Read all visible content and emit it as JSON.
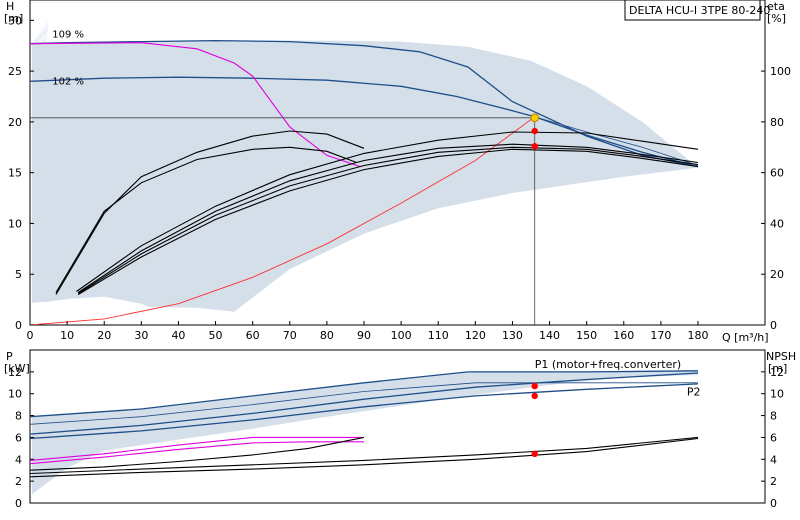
{
  "title": "DELTA HCU-I 3TPE 80-240",
  "colors": {
    "envelope": "#d4dfe9",
    "pump_curve": "#1f4e8a",
    "eff_curve": "#000000",
    "power_limit": "#e000e0",
    "system_curve": "#ff3030",
    "marker": "#ff0000",
    "duty_marker": "#f5d000",
    "grid": "#000000"
  },
  "chart_data": [
    {
      "type": "line",
      "id": "head",
      "xlabel": "Q [m³/h]",
      "ylabel": "H\n[m]",
      "y2label": "eta\n[%]",
      "xlim": [
        0,
        180
      ],
      "ylim": [
        0,
        32
      ],
      "y2lim": [
        0,
        128
      ],
      "xticks": [
        0,
        10,
        20,
        30,
        40,
        50,
        60,
        70,
        80,
        90,
        100,
        110,
        120,
        130,
        140,
        150,
        160,
        170,
        180
      ],
      "yticks": [
        0,
        5,
        10,
        15,
        20,
        25,
        30
      ],
      "y2ticks": [
        0,
        20,
        40,
        60,
        80,
        100
      ],
      "speed_labels": [
        {
          "text": "109 %",
          "x": 6,
          "y": 28.3
        },
        {
          "text": "102 %",
          "x": 6,
          "y": 23.7
        }
      ],
      "envelope": [
        [
          0.5,
          2.2
        ],
        [
          5,
          2.3
        ],
        [
          11,
          2.6
        ],
        [
          20,
          2.8
        ],
        [
          30,
          2.1
        ],
        [
          32,
          1.8
        ],
        [
          45,
          1.7
        ],
        [
          55,
          1.3
        ],
        [
          70,
          5.5
        ],
        [
          90,
          9
        ],
        [
          110,
          11.5
        ],
        [
          130,
          13
        ],
        [
          160,
          14.6
        ],
        [
          180,
          15.5
        ],
        [
          165,
          20
        ],
        [
          150,
          23.5
        ],
        [
          135,
          26
        ],
        [
          118,
          27.4
        ],
        [
          100,
          27.9
        ],
        [
          80,
          28
        ],
        [
          60,
          28
        ],
        [
          30,
          27.9
        ],
        [
          0.5,
          27.8
        ]
      ],
      "hatch_region": [
        [
          0.5,
          2.2
        ],
        [
          0.5,
          27.8
        ],
        [
          5,
          30
        ],
        [
          3,
          22
        ],
        [
          1.8,
          10
        ]
      ],
      "series": [
        {
          "name": "109 %",
          "role": "pump",
          "points": [
            [
              0,
              27.7
            ],
            [
              10,
              27.8
            ],
            [
              30,
              27.9
            ],
            [
              50,
              28
            ],
            [
              70,
              27.9
            ],
            [
              90,
              27.5
            ],
            [
              105,
              26.9
            ],
            [
              118,
              25.4
            ],
            [
              130,
              22
            ],
            [
              150,
              18.6
            ],
            [
              165,
              16.7
            ],
            [
              180,
              15.6
            ]
          ]
        },
        {
          "name": "102 %",
          "role": "pump",
          "points": [
            [
              0,
              24
            ],
            [
              20,
              24.3
            ],
            [
              40,
              24.4
            ],
            [
              60,
              24.3
            ],
            [
              80,
              24.1
            ],
            [
              100,
              23.5
            ],
            [
              115,
              22.5
            ],
            [
              130,
              21.1
            ],
            [
              136,
              20.5
            ],
            [
              150,
              18.7
            ],
            [
              165,
              17
            ],
            [
              180,
              15.6
            ]
          ]
        },
        {
          "name": "",
          "role": "pump-thin",
          "points": [
            [
              136,
              20.5
            ],
            [
              150,
              19
            ],
            [
              165,
              17.5
            ],
            [
              180,
              15.7
            ]
          ]
        },
        {
          "name": "",
          "role": "power-limit",
          "points": [
            [
              0,
              27.7
            ],
            [
              30,
              27.8
            ],
            [
              45,
              27.2
            ],
            [
              55,
              25.8
            ],
            [
              60,
              24.5
            ],
            [
              70,
              19.5
            ],
            [
              80,
              16.7
            ],
            [
              89,
              15.6
            ]
          ]
        },
        {
          "name": "",
          "role": "system",
          "points": [
            [
              0,
              0
            ],
            [
              20,
              0.6
            ],
            [
              40,
              2.1
            ],
            [
              60,
              4.7
            ],
            [
              80,
              8
            ],
            [
              100,
              12
            ],
            [
              120,
              16.2
            ],
            [
              136,
              20.5
            ]
          ]
        },
        {
          "name": "",
          "role": "eff",
          "points": [
            [
              7,
              3
            ],
            [
              20,
              11
            ],
            [
              30,
              14.6
            ],
            [
              45,
              17
            ],
            [
              60,
              18.6
            ],
            [
              70,
              19.1
            ],
            [
              80,
              18.8
            ],
            [
              90,
              17.4
            ]
          ]
        },
        {
          "name": "",
          "role": "eff",
          "points": [
            [
              7,
              3.2
            ],
            [
              20,
              11.2
            ],
            [
              30,
              14
            ],
            [
              45,
              16.3
            ],
            [
              60,
              17.3
            ],
            [
              70,
              17.5
            ],
            [
              80,
              17.1
            ],
            [
              88,
              16
            ]
          ]
        },
        {
          "name": "",
          "role": "eff",
          "points": [
            [
              12.5,
              3.3
            ],
            [
              30,
              7.8
            ],
            [
              50,
              11.7
            ],
            [
              70,
              14.8
            ],
            [
              90,
              16.9
            ],
            [
              110,
              18.2
            ],
            [
              130,
              19
            ],
            [
              150,
              18.9
            ],
            [
              165,
              18.1
            ],
            [
              180,
              17.3
            ]
          ]
        },
        {
          "name": "",
          "role": "eff",
          "points": [
            [
              13,
              3.2
            ],
            [
              30,
              7.3
            ],
            [
              50,
              11.2
            ],
            [
              70,
              14.2
            ],
            [
              90,
              16.2
            ],
            [
              110,
              17.4
            ],
            [
              130,
              17.8
            ],
            [
              150,
              17.5
            ],
            [
              165,
              16.8
            ],
            [
              180,
              16
            ]
          ]
        },
        {
          "name": "",
          "role": "eff",
          "points": [
            [
              13,
              3.1
            ],
            [
              30,
              7
            ],
            [
              50,
              10.8
            ],
            [
              70,
              13.7
            ],
            [
              90,
              15.7
            ],
            [
              110,
              17
            ],
            [
              130,
              17.5
            ],
            [
              150,
              17.3
            ],
            [
              165,
              16.6
            ],
            [
              180,
              15.8
            ]
          ]
        },
        {
          "name": "",
          "role": "eff",
          "points": [
            [
              13,
              3
            ],
            [
              30,
              6.7
            ],
            [
              50,
              10.4
            ],
            [
              70,
              13.2
            ],
            [
              90,
              15.3
            ],
            [
              110,
              16.6
            ],
            [
              130,
              17.3
            ],
            [
              150,
              17.1
            ],
            [
              165,
              16.4
            ],
            [
              180,
              15.6
            ]
          ]
        }
      ],
      "duty_point": {
        "x": 136,
        "y": 20.4,
        "horizontal_line": true,
        "vertical_line": true
      },
      "markers": [
        {
          "x": 136,
          "y": 19.1
        },
        {
          "x": 136,
          "y": 17.6
        }
      ]
    },
    {
      "type": "line",
      "id": "power",
      "ylabel": "P\n[kW]",
      "y2label": "NPSH\n[m]",
      "xlim": [
        0,
        180
      ],
      "ylim": [
        0,
        14
      ],
      "y2lim": [
        0,
        14
      ],
      "yticks": [
        0,
        2,
        4,
        6,
        8,
        10,
        12
      ],
      "y2ticks": [
        0,
        2,
        4,
        6,
        8,
        10,
        12
      ],
      "series_labels": [
        {
          "text": "P1 (motor+freq.converter)",
          "x": 136,
          "y": 12.7,
          "anchor": "start"
        },
        {
          "text": "P2",
          "x": 177,
          "y": 10.2,
          "anchor": "start"
        }
      ],
      "envelope": [
        [
          0.5,
          0.8
        ],
        [
          10,
          3.2
        ],
        [
          20,
          4.8
        ],
        [
          40,
          5.8
        ],
        [
          60,
          6.8
        ],
        [
          80,
          7.9
        ],
        [
          100,
          8.9
        ],
        [
          120,
          9.9
        ],
        [
          140,
          10.8
        ],
        [
          160,
          11.5
        ],
        [
          180,
          11.7
        ],
        [
          180,
          12.1
        ],
        [
          150,
          12
        ],
        [
          118,
          12
        ],
        [
          90,
          11
        ],
        [
          60,
          9.8
        ],
        [
          30,
          8.6
        ],
        [
          0.5,
          7.9
        ]
      ],
      "series": [
        {
          "name": "P1 (motor+freq.converter)",
          "role": "pump",
          "points": [
            [
              0,
              7.9
            ],
            [
              30,
              8.6
            ],
            [
              60,
              9.8
            ],
            [
              90,
              11
            ],
            [
              118,
              12
            ],
            [
              150,
              12
            ],
            [
              180,
              12.1
            ]
          ]
        },
        {
          "name": "",
          "role": "pump",
          "points": [
            [
              0,
              6.3
            ],
            [
              30,
              7.1
            ],
            [
              60,
              8.2
            ],
            [
              90,
              9.5
            ],
            [
              120,
              10.6
            ],
            [
              150,
              11.3
            ],
            [
              180,
              11.9
            ]
          ]
        },
        {
          "name": "",
          "role": "pump-thin",
          "points": [
            [
              0,
              7.2
            ],
            [
              30,
              7.9
            ],
            [
              60,
              9
            ],
            [
              90,
              10.2
            ],
            [
              120,
              11
            ],
            [
              150,
              11
            ],
            [
              180,
              11
            ]
          ]
        },
        {
          "name": "P2",
          "role": "pump",
          "points": [
            [
              0,
              5.9
            ],
            [
              30,
              6.6
            ],
            [
              60,
              7.6
            ],
            [
              90,
              8.8
            ],
            [
              120,
              9.8
            ],
            [
              150,
              10.4
            ],
            [
              180,
              10.9
            ]
          ]
        },
        {
          "name": "",
          "role": "power-limit",
          "points": [
            [
              0,
              3.9
            ],
            [
              20,
              4.5
            ],
            [
              40,
              5.3
            ],
            [
              60,
              6
            ],
            [
              75,
              6
            ],
            [
              90,
              6
            ]
          ]
        },
        {
          "name": "",
          "role": "power-limit",
          "points": [
            [
              0,
              3.6
            ],
            [
              20,
              4.2
            ],
            [
              40,
              4.9
            ],
            [
              60,
              5.5
            ],
            [
              75,
              5.6
            ],
            [
              90,
              5.6
            ]
          ]
        },
        {
          "name": "",
          "role": "eff",
          "points": [
            [
              0,
              3
            ],
            [
              20,
              3.3
            ],
            [
              40,
              3.8
            ],
            [
              60,
              4.4
            ],
            [
              75,
              5
            ],
            [
              90,
              6
            ]
          ]
        },
        {
          "name": "",
          "role": "eff",
          "points": [
            [
              0,
              2.7
            ],
            [
              30,
              3.1
            ],
            [
              60,
              3.5
            ],
            [
              90,
              3.9
            ],
            [
              120,
              4.4
            ],
            [
              150,
              5
            ],
            [
              180,
              6
            ]
          ]
        },
        {
          "name": "",
          "role": "eff",
          "points": [
            [
              0,
              2.4
            ],
            [
              30,
              2.8
            ],
            [
              60,
              3.1
            ],
            [
              90,
              3.5
            ],
            [
              120,
              4
            ],
            [
              150,
              4.7
            ],
            [
              180,
              5.9
            ]
          ]
        }
      ],
      "markers": [
        {
          "x": 136,
          "y": 10.7
        },
        {
          "x": 136,
          "y": 9.8
        },
        {
          "x": 136,
          "y": 4.5
        }
      ]
    }
  ]
}
